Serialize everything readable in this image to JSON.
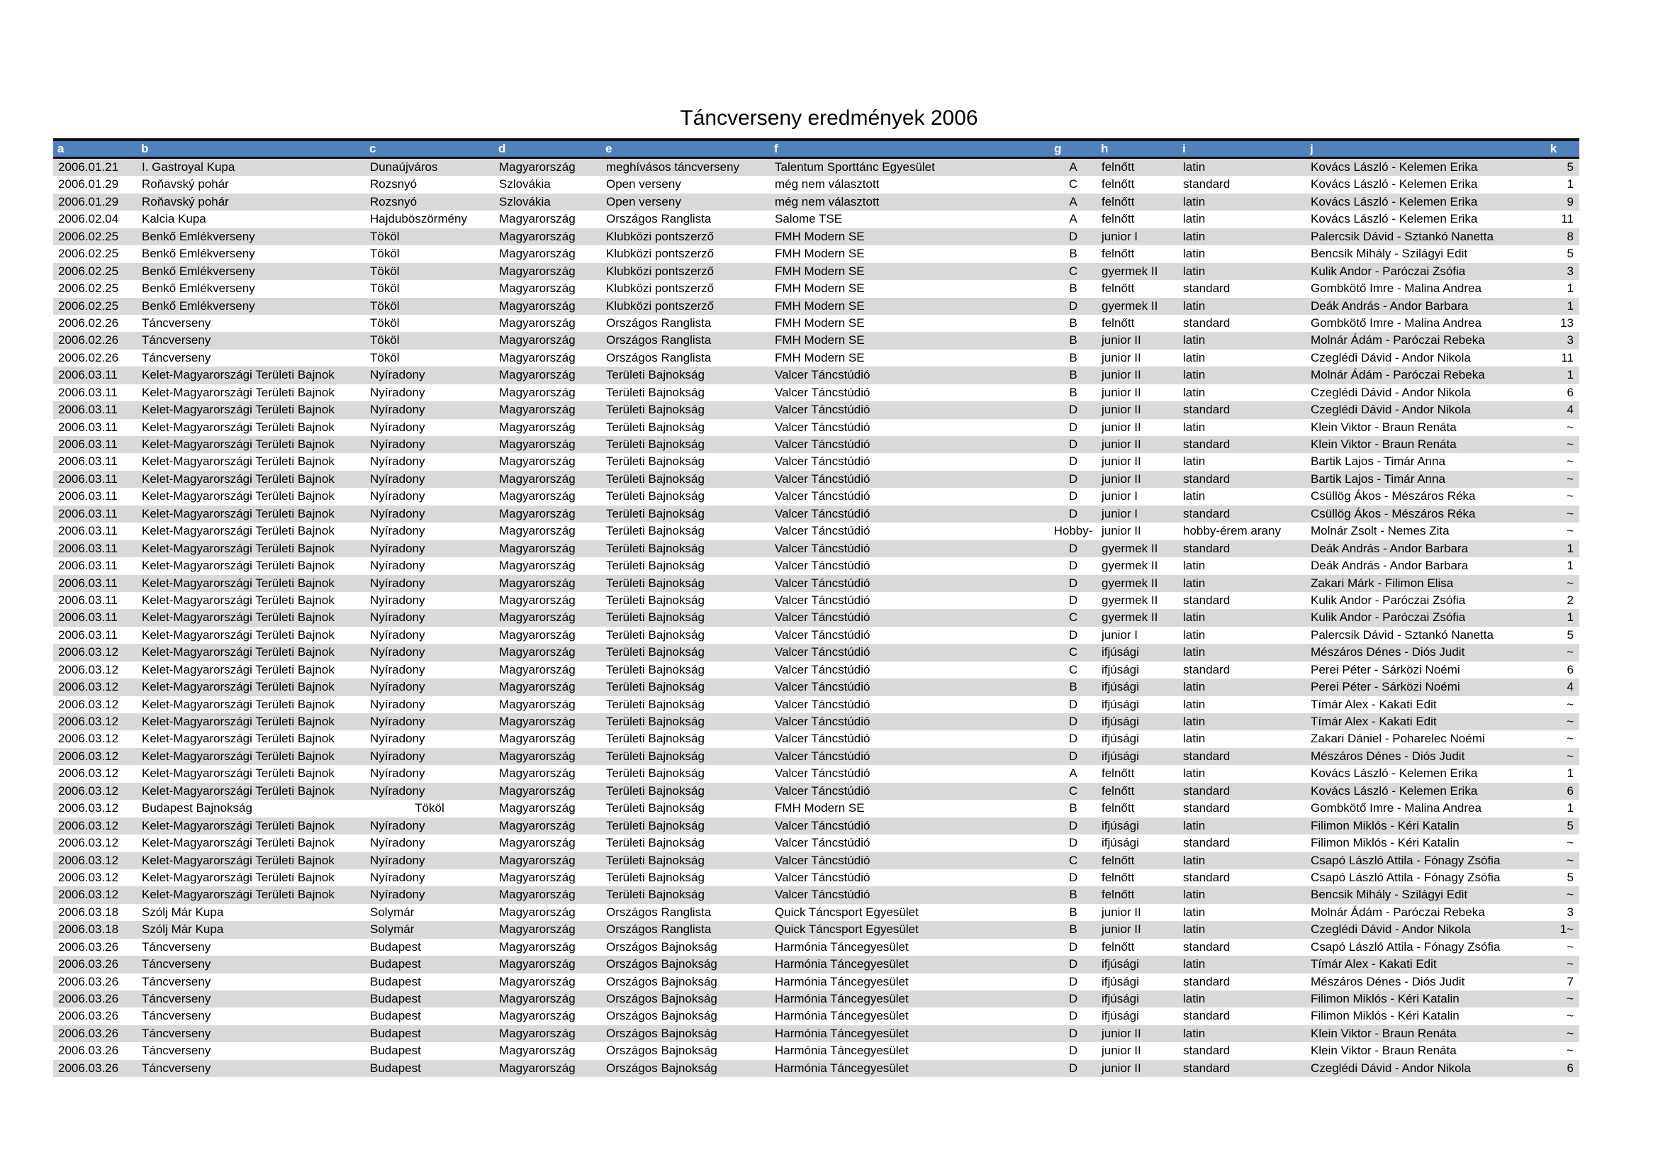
{
  "page_title": "Táncverseny eredmények 2006",
  "colors": {
    "header_bg": "#4f81bd",
    "header_text": "#ffffff",
    "row_alt_bg": "#d9d9d9",
    "row_bg": "#ffffff",
    "border": "#101010",
    "text": "#000000"
  },
  "table": {
    "header_letters": [
      "a",
      "b",
      "c",
      "d",
      "e",
      "f",
      "g",
      "h",
      "i",
      "j",
      "k"
    ],
    "center_c_rows": [
      37
    ],
    "rows": [
      [
        "2006.01.21",
        "I. Gastroyal Kupa",
        "Dunaújváros",
        "Magyarország",
        "meghívásos táncverseny",
        "Talentum Sporttánc Egyesület",
        "A",
        "felnőtt",
        "latin",
        "Kovács László - Kelemen Erika",
        "5"
      ],
      [
        "2006.01.29",
        "Roňavský pohár",
        "Rozsnyó",
        "Szlovákia",
        "Open verseny",
        "még nem választott",
        "C",
        "felnőtt",
        "standard",
        "Kovács László - Kelemen Erika",
        "1"
      ],
      [
        "2006.01.29",
        "Roňavský pohár",
        "Rozsnyó",
        "Szlovákia",
        "Open verseny",
        "még nem választott",
        "A",
        "felnőtt",
        "latin",
        "Kovács László - Kelemen Erika",
        "9"
      ],
      [
        "2006.02.04",
        "Kalcia Kupa",
        "Hajduböszörmény",
        "Magyarország",
        "Országos Ranglista",
        "Salome TSE",
        "A",
        "felnőtt",
        "latin",
        "Kovács László - Kelemen Erika",
        "11"
      ],
      [
        "2006.02.25",
        "Benkő Emlékverseny",
        "Tököl",
        "Magyarország",
        "Klubközi pontszerző",
        "FMH Modern SE",
        "D",
        "junior I",
        "latin",
        "Palercsik Dávid - Sztankó Nanetta",
        "8"
      ],
      [
        "2006.02.25",
        "Benkő Emlékverseny",
        "Tököl",
        "Magyarország",
        "Klubközi pontszerző",
        "FMH Modern SE",
        "B",
        "felnőtt",
        "latin",
        "Bencsik Mihály - Szilágyi Edit",
        "5"
      ],
      [
        "2006.02.25",
        "Benkő Emlékverseny",
        "Tököl",
        "Magyarország",
        "Klubközi pontszerző",
        "FMH Modern SE",
        "C",
        "gyermek II",
        "latin",
        "Kulik Andor - Paróczai Zsófia",
        "3"
      ],
      [
        "2006.02.25",
        "Benkő Emlékverseny",
        "Tököl",
        "Magyarország",
        "Klubközi pontszerző",
        "FMH Modern SE",
        "B",
        "felnőtt",
        "standard",
        "Gombkötő Imre - Malina Andrea",
        "1"
      ],
      [
        "2006.02.25",
        "Benkő Emlékverseny",
        "Tököl",
        "Magyarország",
        "Klubközi pontszerző",
        "FMH Modern SE",
        "D",
        "gyermek II",
        "latin",
        "Deák András - Andor Barbara",
        "1"
      ],
      [
        "2006.02.26",
        "Táncverseny",
        "Tököl",
        "Magyarország",
        "Országos Ranglista",
        "FMH Modern SE",
        "B",
        "felnőtt",
        "standard",
        "Gombkötő Imre - Malina Andrea",
        "13"
      ],
      [
        "2006.02.26",
        "Táncverseny",
        "Tököl",
        "Magyarország",
        "Országos Ranglista",
        "FMH Modern SE",
        "B",
        "junior II",
        "latin",
        "Molnár Ádám - Paróczai Rebeka",
        "3"
      ],
      [
        "2006.02.26",
        "Táncverseny",
        "Tököl",
        "Magyarország",
        "Országos Ranglista",
        "FMH Modern SE",
        "B",
        "junior II",
        "latin",
        "Czeglédi Dávid - Andor Nikola",
        "11"
      ],
      [
        "2006.03.11",
        "Kelet-Magyarországi Területi Bajnok",
        "Nyíradony",
        "Magyarország",
        "Területi Bajnokság",
        "Valcer Táncstúdió",
        "B",
        "junior II",
        "latin",
        "Molnár Ádám - Paróczai Rebeka",
        "1"
      ],
      [
        "2006.03.11",
        "Kelet-Magyarországi Területi Bajnok",
        "Nyíradony",
        "Magyarország",
        "Területi Bajnokság",
        "Valcer Táncstúdió",
        "B",
        "junior II",
        "latin",
        "Czeglédi Dávid - Andor Nikola",
        "6"
      ],
      [
        "2006.03.11",
        "Kelet-Magyarországi Területi Bajnok",
        "Nyíradony",
        "Magyarország",
        "Területi Bajnokság",
        "Valcer Táncstúdió",
        "D",
        "junior II",
        "standard",
        "Czeglédi Dávid - Andor Nikola",
        "4"
      ],
      [
        "2006.03.11",
        "Kelet-Magyarországi Területi Bajnok",
        "Nyíradony",
        "Magyarország",
        "Területi Bajnokság",
        "Valcer Táncstúdió",
        "D",
        "junior II",
        "latin",
        "Klein Viktor - Braun Renáta",
        "~"
      ],
      [
        "2006.03.11",
        "Kelet-Magyarországi Területi Bajnok",
        "Nyíradony",
        "Magyarország",
        "Területi Bajnokság",
        "Valcer Táncstúdió",
        "D",
        "junior II",
        "standard",
        "Klein Viktor - Braun Renáta",
        "~"
      ],
      [
        "2006.03.11",
        "Kelet-Magyarországi Területi Bajnok",
        "Nyíradony",
        "Magyarország",
        "Területi Bajnokság",
        "Valcer Táncstúdió",
        "D",
        "junior II",
        "latin",
        "Bartik Lajos - Timár Anna",
        "~"
      ],
      [
        "2006.03.11",
        "Kelet-Magyarországi Területi Bajnok",
        "Nyíradony",
        "Magyarország",
        "Területi Bajnokság",
        "Valcer Táncstúdió",
        "D",
        "junior II",
        "standard",
        "Bartik Lajos - Timár Anna",
        "~"
      ],
      [
        "2006.03.11",
        "Kelet-Magyarországi Területi Bajnok",
        "Nyíradony",
        "Magyarország",
        "Területi Bajnokság",
        "Valcer Táncstúdió",
        "D",
        "junior I",
        "latin",
        "Csüllög Ákos - Mészáros Réka",
        "~"
      ],
      [
        "2006.03.11",
        "Kelet-Magyarországi Területi Bajnok",
        "Nyíradony",
        "Magyarország",
        "Területi Bajnokság",
        "Valcer Táncstúdió",
        "D",
        "junior I",
        "standard",
        "Csüllög Ákos - Mészáros Réka",
        "~"
      ],
      [
        "2006.03.11",
        "Kelet-Magyarországi Területi Bajnok",
        "Nyíradony",
        "Magyarország",
        "Területi Bajnokság",
        "Valcer Táncstúdió",
        "Hobby-",
        "junior II",
        "hobby-érem arany",
        "Molnár Zsolt - Nemes Zita",
        "~"
      ],
      [
        "2006.03.11",
        "Kelet-Magyarországi Területi Bajnok",
        "Nyíradony",
        "Magyarország",
        "Területi Bajnokság",
        "Valcer Táncstúdió",
        "D",
        "gyermek II",
        "standard",
        "Deák András - Andor Barbara",
        "1"
      ],
      [
        "2006.03.11",
        "Kelet-Magyarországi Területi Bajnok",
        "Nyíradony",
        "Magyarország",
        "Területi Bajnokság",
        "Valcer Táncstúdió",
        "D",
        "gyermek II",
        "latin",
        "Deák András - Andor Barbara",
        "1"
      ],
      [
        "2006.03.11",
        "Kelet-Magyarországi Területi Bajnok",
        "Nyíradony",
        "Magyarország",
        "Területi Bajnokság",
        "Valcer Táncstúdió",
        "D",
        "gyermek II",
        "latin",
        "Zakari Márk - Filimon Elisa",
        "~"
      ],
      [
        "2006.03.11",
        "Kelet-Magyarországi Területi Bajnok",
        "Nyíradony",
        "Magyarország",
        "Területi Bajnokság",
        "Valcer Táncstúdió",
        "D",
        "gyermek II",
        "standard",
        "Kulik Andor - Paróczai Zsófia",
        "2"
      ],
      [
        "2006.03.11",
        "Kelet-Magyarországi Területi Bajnok",
        "Nyíradony",
        "Magyarország",
        "Területi Bajnokság",
        "Valcer Táncstúdió",
        "C",
        "gyermek II",
        "latin",
        "Kulik Andor - Paróczai Zsófia",
        "1"
      ],
      [
        "2006.03.11",
        "Kelet-Magyarországi Területi Bajnok",
        "Nyíradony",
        "Magyarország",
        "Területi Bajnokság",
        "Valcer Táncstúdió",
        "D",
        "junior I",
        "latin",
        "Palercsik Dávid - Sztankó Nanetta",
        "5"
      ],
      [
        "2006.03.12",
        "Kelet-Magyarországi Területi Bajnok",
        "Nyíradony",
        "Magyarország",
        "Területi Bajnokság",
        "Valcer Táncstúdió",
        "C",
        "ifjúsági",
        "latin",
        "Mészáros Dénes - Diós Judit",
        "~"
      ],
      [
        "2006.03.12",
        "Kelet-Magyarországi Területi Bajnok",
        "Nyíradony",
        "Magyarország",
        "Területi Bajnokság",
        "Valcer Táncstúdió",
        "C",
        "ifjúsági",
        "standard",
        "Perei Péter - Sárközi Noémi",
        "6"
      ],
      [
        "2006.03.12",
        "Kelet-Magyarországi Területi Bajnok",
        "Nyíradony",
        "Magyarország",
        "Területi Bajnokság",
        "Valcer Táncstúdió",
        "B",
        "ifjúsági",
        "latin",
        "Perei Péter - Sárközi Noémi",
        "4"
      ],
      [
        "2006.03.12",
        "Kelet-Magyarországi Területi Bajnok",
        "Nyíradony",
        "Magyarország",
        "Területi Bajnokság",
        "Valcer Táncstúdió",
        "D",
        "ifjúsági",
        "latin",
        "Tímár Alex - Kakati Edit",
        "~"
      ],
      [
        "2006.03.12",
        "Kelet-Magyarországi Területi Bajnok",
        "Nyíradony",
        "Magyarország",
        "Területi Bajnokság",
        "Valcer Táncstúdió",
        "D",
        "ifjúsági",
        "latin",
        "Tímár Alex - Kakati Edit",
        "~"
      ],
      [
        "2006.03.12",
        "Kelet-Magyarországi Területi Bajnok",
        "Nyíradony",
        "Magyarország",
        "Területi Bajnokság",
        "Valcer Táncstúdió",
        "D",
        "ifjúsági",
        "latin",
        "Zakari Dániel - Poharelec Noémi",
        "~"
      ],
      [
        "2006.03.12",
        "Kelet-Magyarországi Területi Bajnok",
        "Nyíradony",
        "Magyarország",
        "Területi Bajnokság",
        "Valcer Táncstúdió",
        "D",
        "ifjúsági",
        "standard",
        "Mészáros Dénes - Diós Judit",
        "~"
      ],
      [
        "2006.03.12",
        "Kelet-Magyarországi Területi Bajnok",
        "Nyíradony",
        "Magyarország",
        "Területi Bajnokság",
        "Valcer Táncstúdió",
        "A",
        "felnőtt",
        "latin",
        "Kovács László - Kelemen Erika",
        "1"
      ],
      [
        "2006.03.12",
        "Kelet-Magyarországi Területi Bajnok",
        "Nyíradony",
        "Magyarország",
        "Területi Bajnokság",
        "Valcer Táncstúdió",
        "C",
        "felnőtt",
        "standard",
        "Kovács László - Kelemen Erika",
        "6"
      ],
      [
        "2006.03.12",
        "Budapest Bajnokság",
        "Tököl",
        "Magyarország",
        "Területi Bajnokság",
        "FMH Modern SE",
        "B",
        "felnőtt",
        "standard",
        "Gombkötő Imre - Malina Andrea",
        "1"
      ],
      [
        "2006.03.12",
        "Kelet-Magyarországi Területi Bajnok",
        "Nyíradony",
        "Magyarország",
        "Területi Bajnokság",
        "Valcer Táncstúdió",
        "D",
        "ifjúsági",
        "latin",
        "Filimon Miklós - Kéri Katalin",
        "5"
      ],
      [
        "2006.03.12",
        "Kelet-Magyarországi Területi Bajnok",
        "Nyíradony",
        "Magyarország",
        "Területi Bajnokság",
        "Valcer Táncstúdió",
        "D",
        "ifjúsági",
        "standard",
        "Filimon Miklós - Kéri Katalin",
        "~"
      ],
      [
        "2006.03.12",
        "Kelet-Magyarországi Területi Bajnok",
        "Nyíradony",
        "Magyarország",
        "Területi Bajnokság",
        "Valcer Táncstúdió",
        "C",
        "felnőtt",
        "latin",
        "Csapó László Attila - Fónagy Zsófia",
        "~"
      ],
      [
        "2006.03.12",
        "Kelet-Magyarországi Területi Bajnok",
        "Nyíradony",
        "Magyarország",
        "Területi Bajnokság",
        "Valcer Táncstúdió",
        "D",
        "felnőtt",
        "standard",
        "Csapó László Attila - Fónagy Zsófia",
        "5"
      ],
      [
        "2006.03.12",
        "Kelet-Magyarországi Területi Bajnok",
        "Nyíradony",
        "Magyarország",
        "Területi Bajnokság",
        "Valcer Táncstúdió",
        "B",
        "felnőtt",
        "latin",
        "Bencsik Mihály - Szilágyi Edit",
        "~"
      ],
      [
        "2006.03.18",
        "Szólj Már Kupa",
        "Solymár",
        "Magyarország",
        "Országos Ranglista",
        "Quick Táncsport Egyesület",
        "B",
        "junior II",
        "latin",
        "Molnár Ádám - Paróczai Rebeka",
        "3"
      ],
      [
        "2006.03.18",
        "Szólj Már Kupa",
        "Solymár",
        "Magyarország",
        "Országos Ranglista",
        "Quick Táncsport Egyesület",
        "B",
        "junior II",
        "latin",
        "Czeglédi Dávid - Andor Nikola",
        "1~"
      ],
      [
        "2006.03.26",
        "Táncverseny",
        "Budapest",
        "Magyarország",
        "Országos Bajnokság",
        "Harmónia Táncegyesület",
        "D",
        "felnőtt",
        "standard",
        "Csapó László Attila - Fónagy Zsófia",
        "~"
      ],
      [
        "2006.03.26",
        "Táncverseny",
        "Budapest",
        "Magyarország",
        "Országos Bajnokság",
        "Harmónia Táncegyesület",
        "D",
        "ifjúsági",
        "latin",
        "Tímár Alex - Kakati Edit",
        "~"
      ],
      [
        "2006.03.26",
        "Táncverseny",
        "Budapest",
        "Magyarország",
        "Országos Bajnokság",
        "Harmónia Táncegyesület",
        "D",
        "ifjúsági",
        "standard",
        "Mészáros Dénes - Diós Judit",
        "7"
      ],
      [
        "2006.03.26",
        "Táncverseny",
        "Budapest",
        "Magyarország",
        "Országos Bajnokság",
        "Harmónia Táncegyesület",
        "D",
        "ifjúsági",
        "latin",
        "Filimon Miklós - Kéri Katalin",
        "~"
      ],
      [
        "2006.03.26",
        "Táncverseny",
        "Budapest",
        "Magyarország",
        "Országos Bajnokság",
        "Harmónia Táncegyesület",
        "D",
        "ifjúsági",
        "standard",
        "Filimon Miklós - Kéri Katalin",
        "~"
      ],
      [
        "2006.03.26",
        "Táncverseny",
        "Budapest",
        "Magyarország",
        "Országos Bajnokság",
        "Harmónia Táncegyesület",
        "D",
        "junior II",
        "latin",
        "Klein Viktor - Braun Renáta",
        "~"
      ],
      [
        "2006.03.26",
        "Táncverseny",
        "Budapest",
        "Magyarország",
        "Országos Bajnokság",
        "Harmónia Táncegyesület",
        "D",
        "junior II",
        "standard",
        "Klein Viktor - Braun Renáta",
        "~"
      ],
      [
        "2006.03.26",
        "Táncverseny",
        "Budapest",
        "Magyarország",
        "Országos Bajnokság",
        "Harmónia Táncegyesület",
        "D",
        "junior II",
        "standard",
        "Czeglédi Dávid - Andor Nikola",
        "6"
      ]
    ]
  }
}
